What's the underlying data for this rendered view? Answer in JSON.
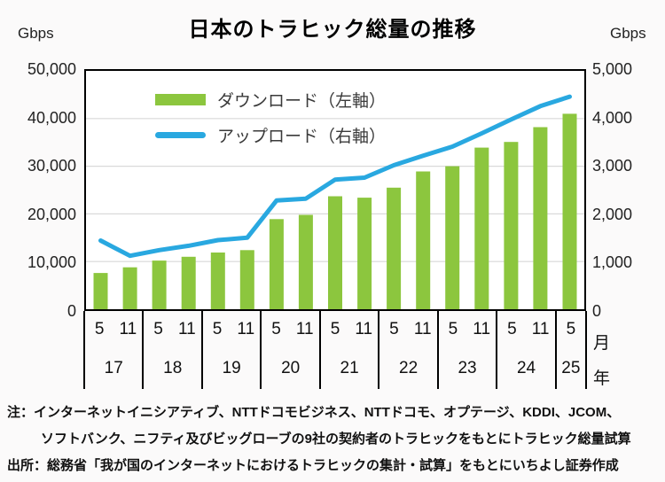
{
  "header": {
    "title": "日本のトラヒック総量の推移"
  },
  "legend": {
    "download": {
      "label": "ダウンロード（左軸）",
      "color": "#8cc63e"
    },
    "upload": {
      "label": "アップロード（右軸）",
      "color": "#29a8e0"
    }
  },
  "chart_data": {
    "type": "bar+line",
    "title": "日本のトラヒック総量の推移",
    "categories": [
      "5/17",
      "11/17",
      "5/18",
      "11/18",
      "5/19",
      "11/19",
      "5/20",
      "11/20",
      "5/21",
      "11/21",
      "5/22",
      "11/22",
      "5/23",
      "11/23",
      "5/24",
      "11/24",
      "5/25"
    ],
    "series": [
      {
        "name": "ダウンロード（左軸）",
        "type": "bar",
        "axis": "left",
        "color": "#8cc63e",
        "values": [
          7600,
          8800,
          10200,
          11000,
          11900,
          12400,
          18900,
          19800,
          23700,
          23400,
          25500,
          28900,
          30000,
          33900,
          35100,
          38200,
          41000
        ]
      },
      {
        "name": "アップロード（右軸）",
        "type": "line",
        "axis": "right",
        "color": "#29a8e0",
        "values": [
          1440,
          1120,
          1240,
          1330,
          1450,
          1500,
          2280,
          2320,
          2720,
          2760,
          3020,
          3220,
          3410,
          3690,
          3980,
          4260,
          4460
        ]
      }
    ],
    "left_axis": {
      "unit": "Gbps",
      "min": 0,
      "max": 50000,
      "tick_labels": [
        "50,000",
        "40,000",
        "30,000",
        "20,000",
        "10,000",
        "0"
      ],
      "grid": true
    },
    "right_axis": {
      "unit": "Gbps",
      "min": 0,
      "max": 5000,
      "tick_labels": [
        "5,000",
        "4,000",
        "3,000",
        "2,000",
        "1,000",
        "0"
      ]
    },
    "x_axis": {
      "month_label": "月",
      "year_label": "年",
      "groups": [
        {
          "year": "17",
          "months": [
            "5",
            "11"
          ]
        },
        {
          "year": "18",
          "months": [
            "5",
            "11"
          ]
        },
        {
          "year": "19",
          "months": [
            "5",
            "11"
          ]
        },
        {
          "year": "20",
          "months": [
            "5",
            "11"
          ]
        },
        {
          "year": "21",
          "months": [
            "5",
            "11"
          ]
        },
        {
          "year": "22",
          "months": [
            "5",
            "11"
          ]
        },
        {
          "year": "23",
          "months": [
            "5",
            "11"
          ]
        },
        {
          "year": "24",
          "months": [
            "5",
            "11"
          ]
        },
        {
          "year": "25",
          "months": [
            "5"
          ]
        }
      ]
    },
    "grid_color": "#d9d9d9",
    "legend_position": "top-left-inside"
  },
  "footnotes": {
    "note_line1": "注：インターネットイニシアティブ、NTTドコモビジネス、NTTドコモ、オプテージ、KDDI、JCOM、",
    "note_line2": "ソフトバンク、ニフティ及びビッグローブの9社の契約者のトラヒックをもとにトラヒック総量試算",
    "source": "出所：総務省「我が国のインターネットにおけるトラヒックの集計・試算」をもとにいちよし証券作成"
  }
}
